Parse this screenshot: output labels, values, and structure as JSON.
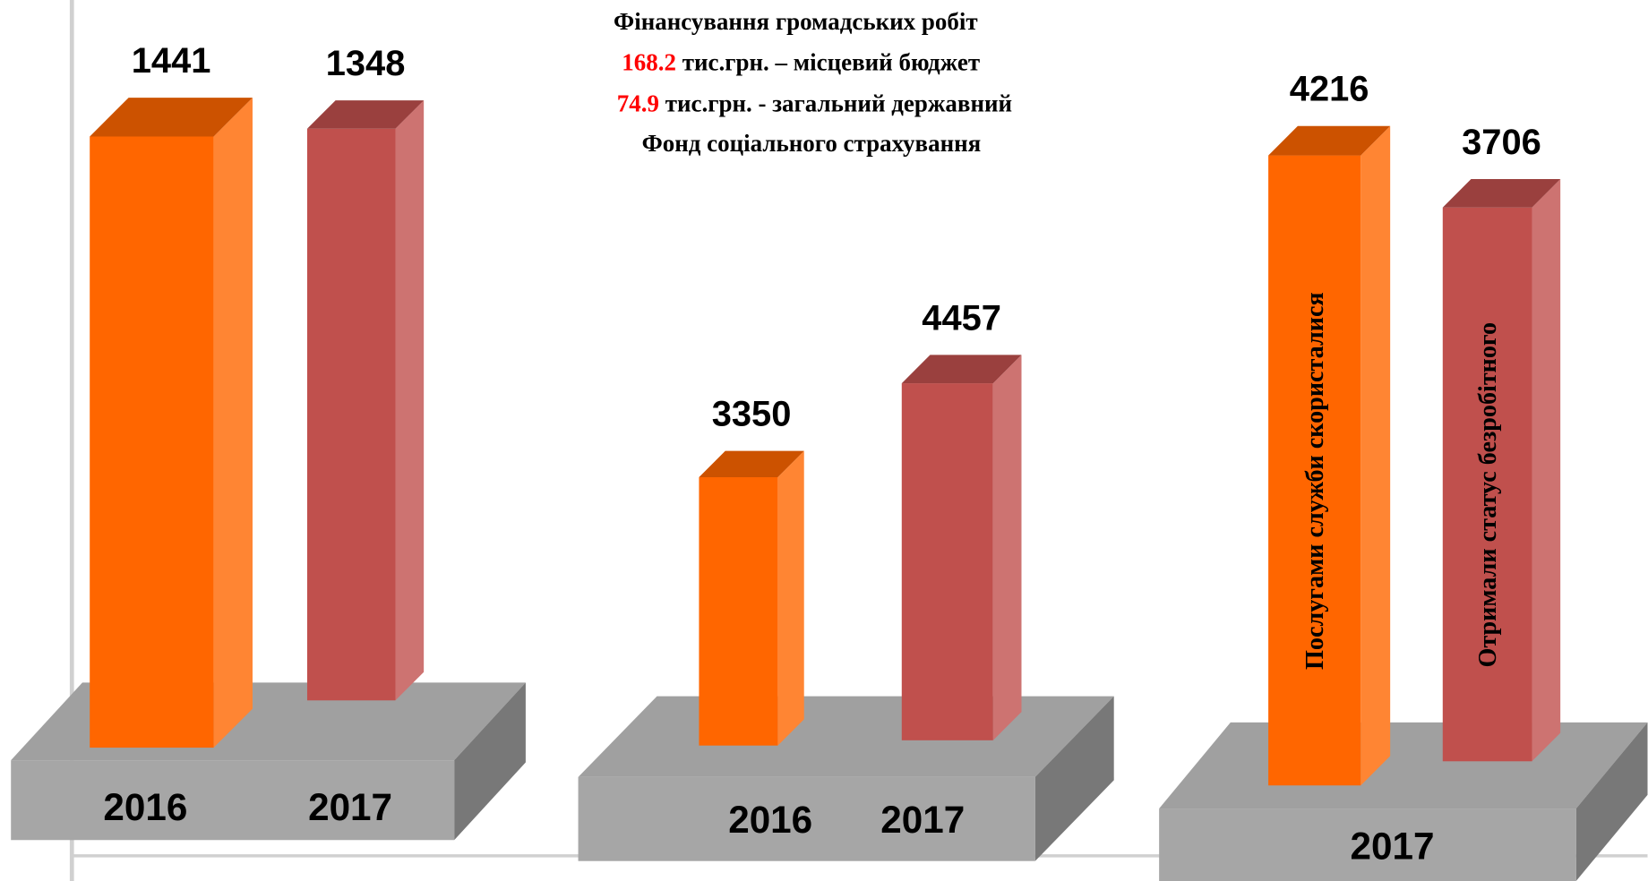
{
  "header": {
    "title": "Фінансування громадських робіт",
    "lines": [
      {
        "amount": 168.2,
        "text": "тис.грн. – місцевий бюджет"
      },
      {
        "amount": 74.9,
        "text": "тис.грн. -  загальний державний"
      }
    ],
    "subtitle": "Фонд соціального страхування"
  },
  "chart_data": [
    {
      "type": "bar",
      "categories": [
        "2016",
        "2017"
      ],
      "values": [
        1441,
        1348
      ],
      "colors": [
        "#ff6600",
        "#c0504d"
      ]
    },
    {
      "type": "bar",
      "categories": [
        "2016",
        "2017"
      ],
      "values": [
        3350,
        4457
      ],
      "colors": [
        "#ff6600",
        "#c0504d"
      ]
    },
    {
      "type": "bar",
      "categories": [
        "2017"
      ],
      "series": [
        {
          "name": "Послугами служби скористалися",
          "color": "#ff6600",
          "values": [
            4216
          ]
        },
        {
          "name": "Отримали статус безробітного",
          "color": "#c0504d",
          "values": [
            3706
          ]
        }
      ]
    }
  ]
}
